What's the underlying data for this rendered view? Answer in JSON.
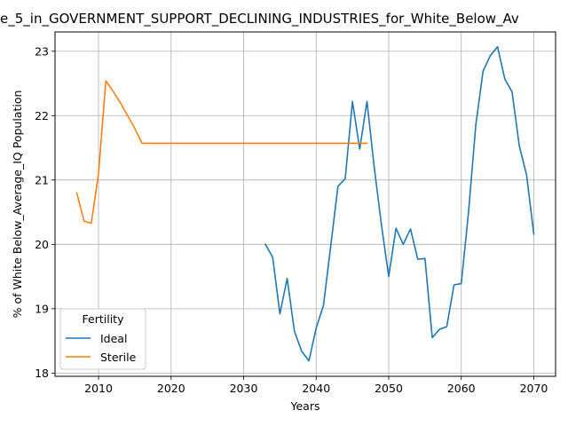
{
  "chart_data": {
    "type": "line",
    "title": "e_5_in_GOVERNMENT_SUPPORT_DECLINING_INDUSTRIES_for_White_Below_Av",
    "xlabel": "Years",
    "ylabel": "% of White Below_Average_IQ Population",
    "xlim": [
      2004,
      2073
    ],
    "ylim": [
      17.95,
      23.3
    ],
    "x_ticks": [
      2010,
      2020,
      2030,
      2040,
      2050,
      2060,
      2070
    ],
    "y_ticks": [
      18,
      19,
      20,
      21,
      22,
      23
    ],
    "grid": true,
    "legend": {
      "title": "Fertility",
      "placement": "lower-left",
      "entries": [
        "Ideal",
        "Sterile"
      ]
    },
    "series": [
      {
        "name": "Ideal",
        "color": "#1f77b4",
        "x": [
          2033,
          2034,
          2035,
          2036,
          2037,
          2038,
          2039,
          2040,
          2041,
          2042,
          2043,
          2044,
          2045,
          2046,
          2047,
          2048,
          2049,
          2050,
          2051,
          2052,
          2053,
          2054,
          2055,
          2056,
          2057,
          2058,
          2059,
          2060,
          2061,
          2062,
          2063,
          2064,
          2065,
          2066,
          2067,
          2068,
          2069,
          2070
        ],
        "y": [
          20.0,
          19.8,
          18.92,
          19.47,
          18.65,
          18.34,
          18.19,
          18.7,
          19.05,
          19.97,
          20.9,
          21.02,
          22.22,
          21.48,
          22.22,
          21.2,
          20.3,
          19.5,
          20.25,
          20.0,
          20.24,
          19.77,
          19.78,
          18.55,
          18.68,
          18.72,
          19.37,
          19.39,
          20.5,
          21.85,
          22.69,
          22.93,
          23.07,
          22.57,
          22.37,
          21.53,
          21.08,
          20.16
        ]
      },
      {
        "name": "Sterile",
        "color": "#ff7f0e",
        "x": [
          2007,
          2008,
          2009,
          2010,
          2011,
          2012,
          2013,
          2014,
          2015,
          2016,
          2020,
          2030,
          2040,
          2047
        ],
        "y": [
          20.8,
          20.36,
          20.33,
          21.1,
          22.54,
          22.38,
          22.2,
          22.0,
          21.8,
          21.57,
          21.57,
          21.57,
          21.57,
          21.57
        ]
      }
    ]
  }
}
